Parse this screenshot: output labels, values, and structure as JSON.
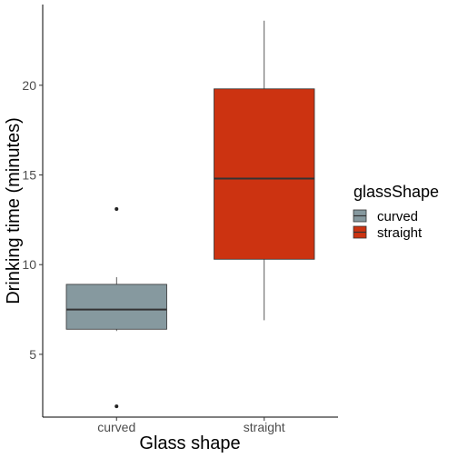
{
  "chart_data": {
    "type": "boxplot",
    "xlabel": "Glass shape",
    "ylabel": "Drinking time (minutes)",
    "ylim": [
      1.5,
      24.5
    ],
    "yticks": [
      5,
      10,
      15,
      20
    ],
    "grid": false,
    "legend": {
      "title": "glassShape",
      "position": "right",
      "entries": [
        {
          "label": "curved",
          "color": "#86999f"
        },
        {
          "label": "straight",
          "color": "#cc3311"
        }
      ]
    },
    "categories": [
      "curved",
      "straight"
    ],
    "boxes": [
      {
        "category": "curved",
        "color": "#86999f",
        "whisker_low": 6.3,
        "q1": 6.4,
        "median": 7.5,
        "q3": 8.9,
        "whisker_high": 9.3,
        "outliers": [
          13.1,
          2.1
        ]
      },
      {
        "category": "straight",
        "color": "#cc3311",
        "whisker_low": 6.9,
        "q1": 10.3,
        "median": 14.8,
        "q3": 19.8,
        "whisker_high": 23.6,
        "outliers": []
      }
    ]
  }
}
